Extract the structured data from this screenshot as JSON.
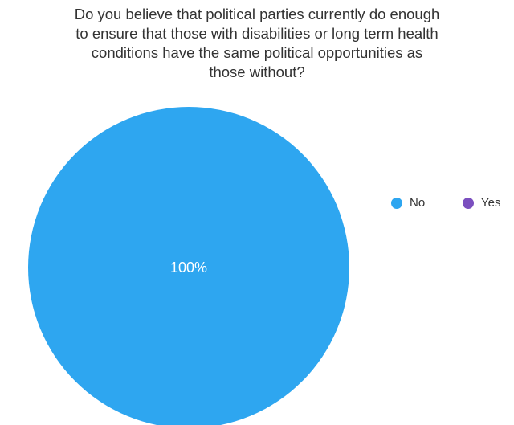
{
  "chart_data": {
    "type": "pie",
    "title_lines": [
      "Do you believe that political parties currently do enough",
      "to ensure that those with disabilities or long term health",
      "conditions have the same political opportunities as",
      "those without?"
    ],
    "categories": [
      "No",
      "Yes"
    ],
    "values": [
      100,
      0
    ],
    "labels": [
      "100%",
      ""
    ],
    "colors": [
      "#2ea6f0",
      "#7b4fbf"
    ],
    "legend_position": "right"
  }
}
